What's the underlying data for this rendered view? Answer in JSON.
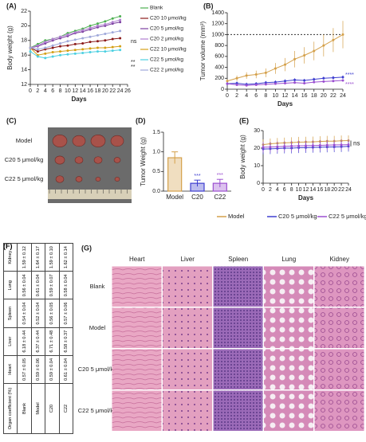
{
  "chart_data": [
    {
      "type": "line",
      "panel": "(A)",
      "xlabel": "Days",
      "ylabel": "Body weight (g)",
      "x": [
        0,
        2,
        4,
        6,
        8,
        10,
        12,
        14,
        16,
        18,
        20,
        22,
        24
      ],
      "xlim": [
        0,
        26
      ],
      "xticks": [
        0,
        2,
        4,
        6,
        8,
        10,
        12,
        14,
        16,
        18,
        20,
        22,
        24,
        26
      ],
      "ylim": [
        12,
        22
      ],
      "yticks": [
        12,
        14,
        16,
        18,
        20,
        22
      ],
      "series": [
        {
          "name": "Blank",
          "color": "#4caf50",
          "values": [
            17,
            17.5,
            18,
            18.2,
            18.5,
            19,
            19.3,
            19.6,
            20,
            20.3,
            20.6,
            21,
            21.3
          ]
        },
        {
          "name": "C20 10 μmol/kg",
          "color": "#8b1a1a",
          "values": [
            17,
            16.5,
            16.8,
            17,
            17.2,
            17.3,
            17.5,
            17.6,
            17.8,
            17.9,
            18,
            18.2,
            18.3
          ]
        },
        {
          "name": "C20 5 μmol/kg",
          "color": "#7b3fa0",
          "values": [
            17,
            17.2,
            17.6,
            18,
            18.3,
            18.6,
            19,
            19.2,
            19.5,
            19.8,
            20,
            20.3,
            20.5
          ]
        },
        {
          "name": "C20 2 μmol/kg",
          "color": "#b07fd0",
          "values": [
            17,
            17.3,
            17.8,
            18.2,
            18.5,
            18.8,
            19.1,
            19.4,
            19.7,
            20,
            20.2,
            20.5,
            20.8
          ]
        },
        {
          "name": "C22 10 μmol/kg",
          "color": "#d4a017",
          "values": [
            17,
            16,
            16.2,
            16.4,
            16.5,
            16.6,
            16.7,
            16.8,
            16.9,
            17,
            17,
            17.1,
            17.2
          ]
        },
        {
          "name": "C22 5 μmol/kg",
          "color": "#4dd0e1",
          "values": [
            16.5,
            15.8,
            15.6,
            15.8,
            16,
            16.1,
            16.2,
            16.3,
            16.4,
            16.5,
            16.5,
            16.6,
            16.7
          ]
        },
        {
          "name": "C22 2 μmol/kg",
          "color": "#9fa8da",
          "values": [
            17,
            16.8,
            17,
            17.3,
            17.6,
            17.9,
            18.1,
            18.3,
            18.5,
            18.7,
            18.9,
            19.1,
            19.3
          ]
        }
      ],
      "annotations": [
        "ns",
        "**",
        "**"
      ]
    },
    {
      "type": "line",
      "panel": "(B)",
      "xlabel": "Days",
      "ylabel": "Tumor volume (mm³)",
      "x": [
        0,
        2,
        4,
        6,
        8,
        10,
        12,
        14,
        16,
        18,
        20,
        22,
        24
      ],
      "xlim": [
        0,
        24
      ],
      "xticks": [
        0,
        2,
        4,
        6,
        8,
        10,
        12,
        14,
        16,
        18,
        20,
        22,
        24
      ],
      "ylim": [
        0,
        1400
      ],
      "yticks": [
        0,
        200,
        400,
        600,
        800,
        1000,
        1200,
        1400
      ],
      "reference_line": 1000,
      "series": [
        {
          "color": "#d4a04a",
          "values": [
            150,
            200,
            250,
            270,
            300,
            380,
            450,
            550,
            620,
            700,
            800,
            900,
            1000
          ],
          "errors": [
            30,
            50,
            60,
            70,
            80,
            100,
            120,
            150,
            150,
            170,
            200,
            220,
            250
          ]
        },
        {
          "color": "#3f3fd0",
          "values": [
            100,
            110,
            90,
            100,
            120,
            130,
            150,
            170,
            160,
            180,
            200,
            210,
            220
          ],
          "errors": [
            30,
            30,
            30,
            30,
            30,
            30,
            30,
            30,
            30,
            30,
            30,
            30,
            30
          ]
        },
        {
          "color": "#9b4fd0",
          "values": [
            100,
            80,
            70,
            80,
            90,
            100,
            110,
            120,
            110,
            130,
            140,
            150,
            160
          ],
          "errors": [
            20,
            20,
            20,
            20,
            20,
            20,
            20,
            20,
            20,
            20,
            20,
            20,
            20
          ]
        }
      ],
      "annotations": [
        "****",
        "****"
      ]
    },
    {
      "type": "bar",
      "panel": "(D)",
      "ylabel": "Tumor Weight (g)",
      "categories": [
        "Model",
        "C20",
        "C22"
      ],
      "values": [
        0.85,
        0.2,
        0.2
      ],
      "errors": [
        0.15,
        0.08,
        0.1
      ],
      "colors": [
        "#d4a04a",
        "#3f3fd0",
        "#9b4fd0"
      ],
      "ylim": [
        0,
        1.5
      ],
      "yticks": [
        {
          "value": 0,
          "label": "0.0"
        },
        0.5,
        {
          "value": 1,
          "label": "1.0"
        },
        1.5
      ],
      "annotations": [
        "***",
        "***"
      ]
    },
    {
      "type": "line",
      "panel": "(E)",
      "xlabel": "Days",
      "ylabel": "Body weight (g)",
      "x": [
        0,
        2,
        4,
        6,
        8,
        10,
        12,
        14,
        16,
        18,
        20,
        22,
        24
      ],
      "xlim": [
        0,
        24
      ],
      "xticks": [
        0,
        2,
        4,
        6,
        8,
        10,
        12,
        14,
        16,
        18,
        20,
        22,
        24
      ],
      "ylim": [
        0,
        30
      ],
      "yticks": [
        0,
        10,
        20,
        30
      ],
      "series": [
        {
          "name": "Model",
          "color": "#d4a04a",
          "values": [
            22,
            22.5,
            22.8,
            23,
            23.2,
            23.4,
            23.5,
            23.6,
            23.8,
            24,
            24,
            24.2,
            24.3
          ],
          "errors": [
            3,
            3,
            3,
            3,
            3,
            3,
            3,
            3,
            3,
            3,
            3,
            3,
            3
          ]
        },
        {
          "name": "C20 5 μmol/kg",
          "color": "#3f3fd0",
          "values": [
            19.5,
            19.6,
            19.8,
            20,
            20,
            20.2,
            20.3,
            20.4,
            20.5,
            20.6,
            20.7,
            20.8,
            21
          ],
          "errors": [
            3,
            3,
            3,
            3,
            3,
            3,
            3,
            3,
            3,
            3,
            3,
            3,
            3
          ]
        },
        {
          "name": "C22 5 μmol/kg",
          "color": "#9b4fd0",
          "values": [
            20.5,
            20.6,
            20.8,
            21,
            21.2,
            21.3,
            21.4,
            21.5,
            21.6,
            21.7,
            21.8,
            21.9,
            22
          ],
          "errors": [
            3,
            3,
            3,
            3,
            3,
            3,
            3,
            3,
            3,
            3,
            3,
            3,
            3
          ]
        }
      ],
      "annotations": [
        "ns"
      ]
    }
  ],
  "photo": {
    "panel": "(C)",
    "rows": [
      "Model",
      "C20 5 μmol/kg",
      "C22 5 μmol/kg"
    ]
  },
  "table": {
    "panel": "(F)",
    "header": [
      "Organ coefficient (%)",
      "Heart",
      "Liver",
      "Spleen",
      "Lung",
      "Kidney"
    ],
    "rows": [
      [
        "Blank",
        "0.57 ± 0.05",
        "6.18 ± 0.44",
        "0.54 ± 0.04",
        "0.56 ± 0.04",
        "1.59 ± 0.12"
      ],
      [
        "Model",
        "0.59 ± 0.06",
        "6.37 ± 0.44",
        "0.52 ± 0.04",
        "0.61 ± 0.04",
        "1.64 ± 0.17"
      ],
      [
        "C20",
        "0.59 ± 0.04",
        "6.71 ± 0.48",
        "0.56 ± 0.05",
        "0.59 ± 0.07",
        "1.59 ± 0.10"
      ],
      [
        "C22",
        "0.61 ± 0.04",
        "6.58 ± 0.37",
        "0.57 ± 0.06",
        "0.58 ± 0.04",
        "1.62 ± 0.14"
      ]
    ]
  },
  "histology": {
    "panel": "(G)",
    "columns": [
      "Heart",
      "Liver",
      "Spleen",
      "Lung",
      "Kidney"
    ],
    "rows": [
      "Blank",
      "Model",
      "C20 5 μmol/kg",
      "C22 5 μmol/kg"
    ]
  }
}
